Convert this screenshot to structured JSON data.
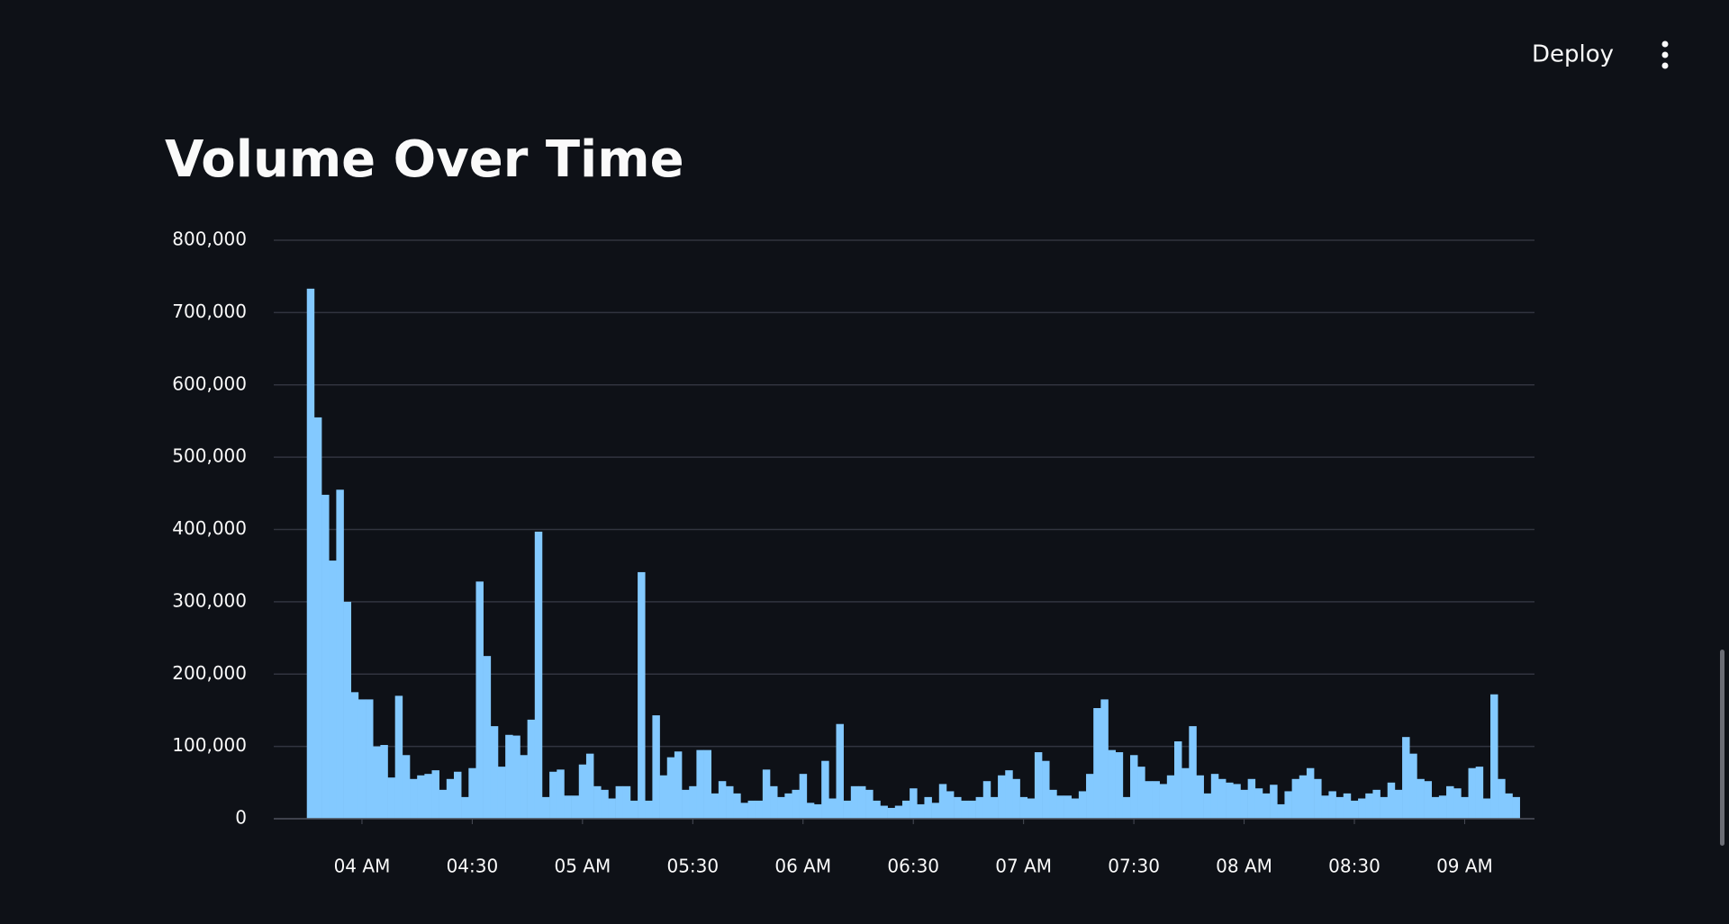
{
  "header": {
    "deploy": "Deploy"
  },
  "chart_data": {
    "type": "bar",
    "title": "Volume Over Time",
    "color": "#83c9ff",
    "grid": true,
    "x": [
      "03:45",
      "03:47",
      "03:49",
      "03:51",
      "03:53",
      "03:55",
      "03:57",
      "03:59",
      "04:01",
      "04:03",
      "04:05",
      "04:07",
      "04:09",
      "04:11",
      "04:13",
      "04:15",
      "04:17",
      "04:19",
      "04:21",
      "04:23",
      "04:25",
      "04:27",
      "04:29",
      "04:31",
      "04:33",
      "04:35",
      "04:37",
      "04:39",
      "04:41",
      "04:43",
      "04:45",
      "04:47",
      "04:49",
      "04:51",
      "04:53",
      "04:55",
      "04:57",
      "04:59",
      "05:01",
      "05:03",
      "05:05",
      "05:07",
      "05:09",
      "05:11",
      "05:13",
      "05:15",
      "05:17",
      "05:19",
      "05:21",
      "05:23",
      "05:25",
      "05:27",
      "05:29",
      "05:31",
      "05:33",
      "05:35",
      "05:37",
      "05:39",
      "05:41",
      "05:43",
      "05:45",
      "05:47",
      "05:49",
      "05:51",
      "05:53",
      "05:55",
      "05:57",
      "05:59",
      "06:01",
      "06:03",
      "06:05",
      "06:07",
      "06:09",
      "06:11",
      "06:13",
      "06:15",
      "06:17",
      "06:19",
      "06:21",
      "06:23",
      "06:25",
      "06:27",
      "06:29",
      "06:31",
      "06:33",
      "06:35",
      "06:37",
      "06:39",
      "06:41",
      "06:43",
      "06:45",
      "06:47",
      "06:49",
      "06:51",
      "06:53",
      "06:55",
      "06:57",
      "06:59",
      "07:01",
      "07:03",
      "07:05",
      "07:07",
      "07:09",
      "07:11",
      "07:13",
      "07:15",
      "07:17",
      "07:19",
      "07:21",
      "07:23",
      "07:25",
      "07:27",
      "07:29",
      "07:31",
      "07:33",
      "07:35",
      "07:37",
      "07:39",
      "07:41",
      "07:43",
      "07:45",
      "07:47",
      "07:49",
      "07:51",
      "07:53",
      "07:55",
      "07:57",
      "07:59",
      "08:01",
      "08:03",
      "08:05",
      "08:07",
      "08:09",
      "08:11",
      "08:13",
      "08:15",
      "08:17",
      "08:19",
      "08:21",
      "08:23",
      "08:25",
      "08:27",
      "08:29",
      "08:31",
      "08:33",
      "08:35",
      "08:37",
      "08:39",
      "08:41",
      "08:43",
      "08:45",
      "08:47",
      "08:49",
      "08:51",
      "08:53",
      "08:55",
      "08:57",
      "08:59",
      "09:01",
      "09:03",
      "09:05",
      "09:07",
      "09:09",
      "09:11",
      "09:13"
    ],
    "values": [
      733000,
      555000,
      448000,
      357000,
      455000,
      300000,
      175000,
      165000,
      165000,
      100000,
      102000,
      57000,
      170000,
      88000,
      55000,
      60000,
      62000,
      67000,
      40000,
      55000,
      65000,
      30000,
      70000,
      328000,
      225000,
      128000,
      72000,
      116000,
      115000,
      88000,
      137000,
      397000,
      30000,
      65000,
      68000,
      32000,
      32000,
      75000,
      90000,
      45000,
      40000,
      28000,
      45000,
      45000,
      25000,
      341000,
      25000,
      143000,
      60000,
      85000,
      93000,
      40000,
      45000,
      95000,
      95000,
      35000,
      52000,
      45000,
      35000,
      22000,
      25000,
      25000,
      68000,
      45000,
      30000,
      35000,
      40000,
      62000,
      22000,
      20000,
      80000,
      28000,
      131000,
      25000,
      45000,
      45000,
      40000,
      25000,
      18000,
      15000,
      18000,
      25000,
      42000,
      20000,
      30000,
      22000,
      48000,
      38000,
      30000,
      25000,
      25000,
      30000,
      52000,
      30000,
      60000,
      67000,
      55000,
      30000,
      28000,
      92000,
      80000,
      40000,
      32000,
      32000,
      28000,
      38000,
      62000,
      153000,
      165000,
      95000,
      92000,
      30000,
      88000,
      72000,
      52000,
      52000,
      48000,
      60000,
      107000,
      70000,
      128000,
      60000,
      35000,
      62000,
      55000,
      50000,
      48000,
      40000,
      55000,
      42000,
      35000,
      47000,
      20000,
      38000,
      55000,
      60000,
      70000,
      55000,
      32000,
      38000,
      30000,
      35000,
      25000,
      28000,
      35000,
      40000,
      30000,
      50000,
      40000,
      113000,
      90000,
      55000,
      52000,
      30000,
      32000,
      45000,
      42000,
      30000,
      70000,
      72000,
      28000,
      172000,
      55000,
      35000,
      30000
    ],
    "xlim": [
      "03:36",
      "09:19"
    ],
    "xticks": [
      {
        "value": "04:00",
        "label": "04 AM"
      },
      "04:30",
      {
        "value": "05:00",
        "label": "05 AM"
      },
      "05:30",
      {
        "value": "06:00",
        "label": "06 AM"
      },
      "06:30",
      {
        "value": "07:00",
        "label": "07 AM"
      },
      "07:30",
      {
        "value": "08:00",
        "label": "08 AM"
      },
      "08:30",
      {
        "value": "09:00",
        "label": "09 AM"
      }
    ],
    "ylim": [
      0,
      800000
    ],
    "yticks": [
      0,
      {
        "value": 100000,
        "label": "100,000"
      },
      {
        "value": 200000,
        "label": "200,000"
      },
      {
        "value": 300000,
        "label": "300,000"
      },
      {
        "value": 400000,
        "label": "400,000"
      },
      {
        "value": 500000,
        "label": "500,000"
      },
      {
        "value": 600000,
        "label": "600,000"
      },
      {
        "value": 700000,
        "label": "700,000"
      },
      {
        "value": 800000,
        "label": "800,000"
      }
    ]
  }
}
